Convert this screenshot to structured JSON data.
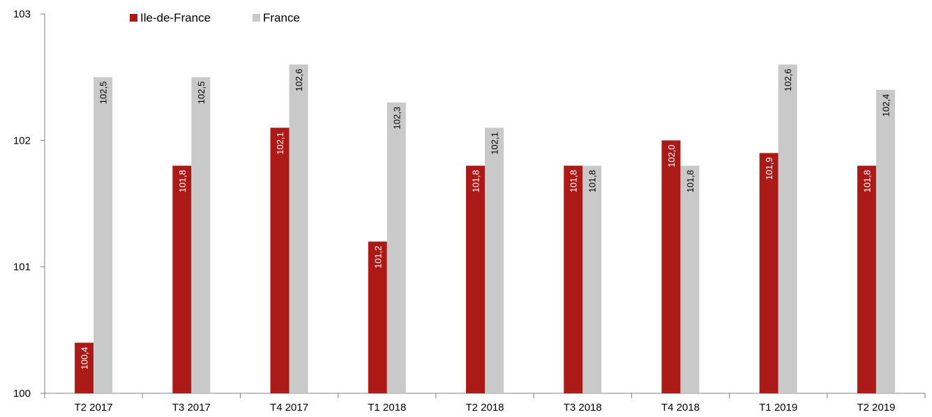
{
  "chart_data": {
    "type": "bar",
    "categories": [
      "T2 2017",
      "T3 2017",
      "T4 2017",
      "T1 2018",
      "T2 2018",
      "T3 2018",
      "T4 2018",
      "T1 2019",
      "T2 2019"
    ],
    "series": [
      {
        "name": "Ile-de-France",
        "color": "#ab1a17",
        "values": [
          100.4,
          101.8,
          102.1,
          101.2,
          101.8,
          101.8,
          102.0,
          101.9,
          101.8
        ],
        "labels": [
          "100,4",
          "101,8",
          "102,1",
          "101,2",
          "101,8",
          "101,8",
          "102,0",
          "101,9",
          "101,8"
        ]
      },
      {
        "name": "France",
        "color": "#c9c9c9",
        "values": [
          102.5,
          102.5,
          102.6,
          102.3,
          102.1,
          101.8,
          101.8,
          102.6,
          102.4
        ],
        "labels": [
          "102,5",
          "102,5",
          "102,6",
          "102,3",
          "102,1",
          "101,8",
          "101,8",
          "102,6",
          "102,4"
        ]
      }
    ],
    "ylim": [
      100,
      103
    ],
    "yticks": [
      "100",
      "101",
      "102",
      "103"
    ],
    "legend_position": "top-left",
    "grid": false
  }
}
